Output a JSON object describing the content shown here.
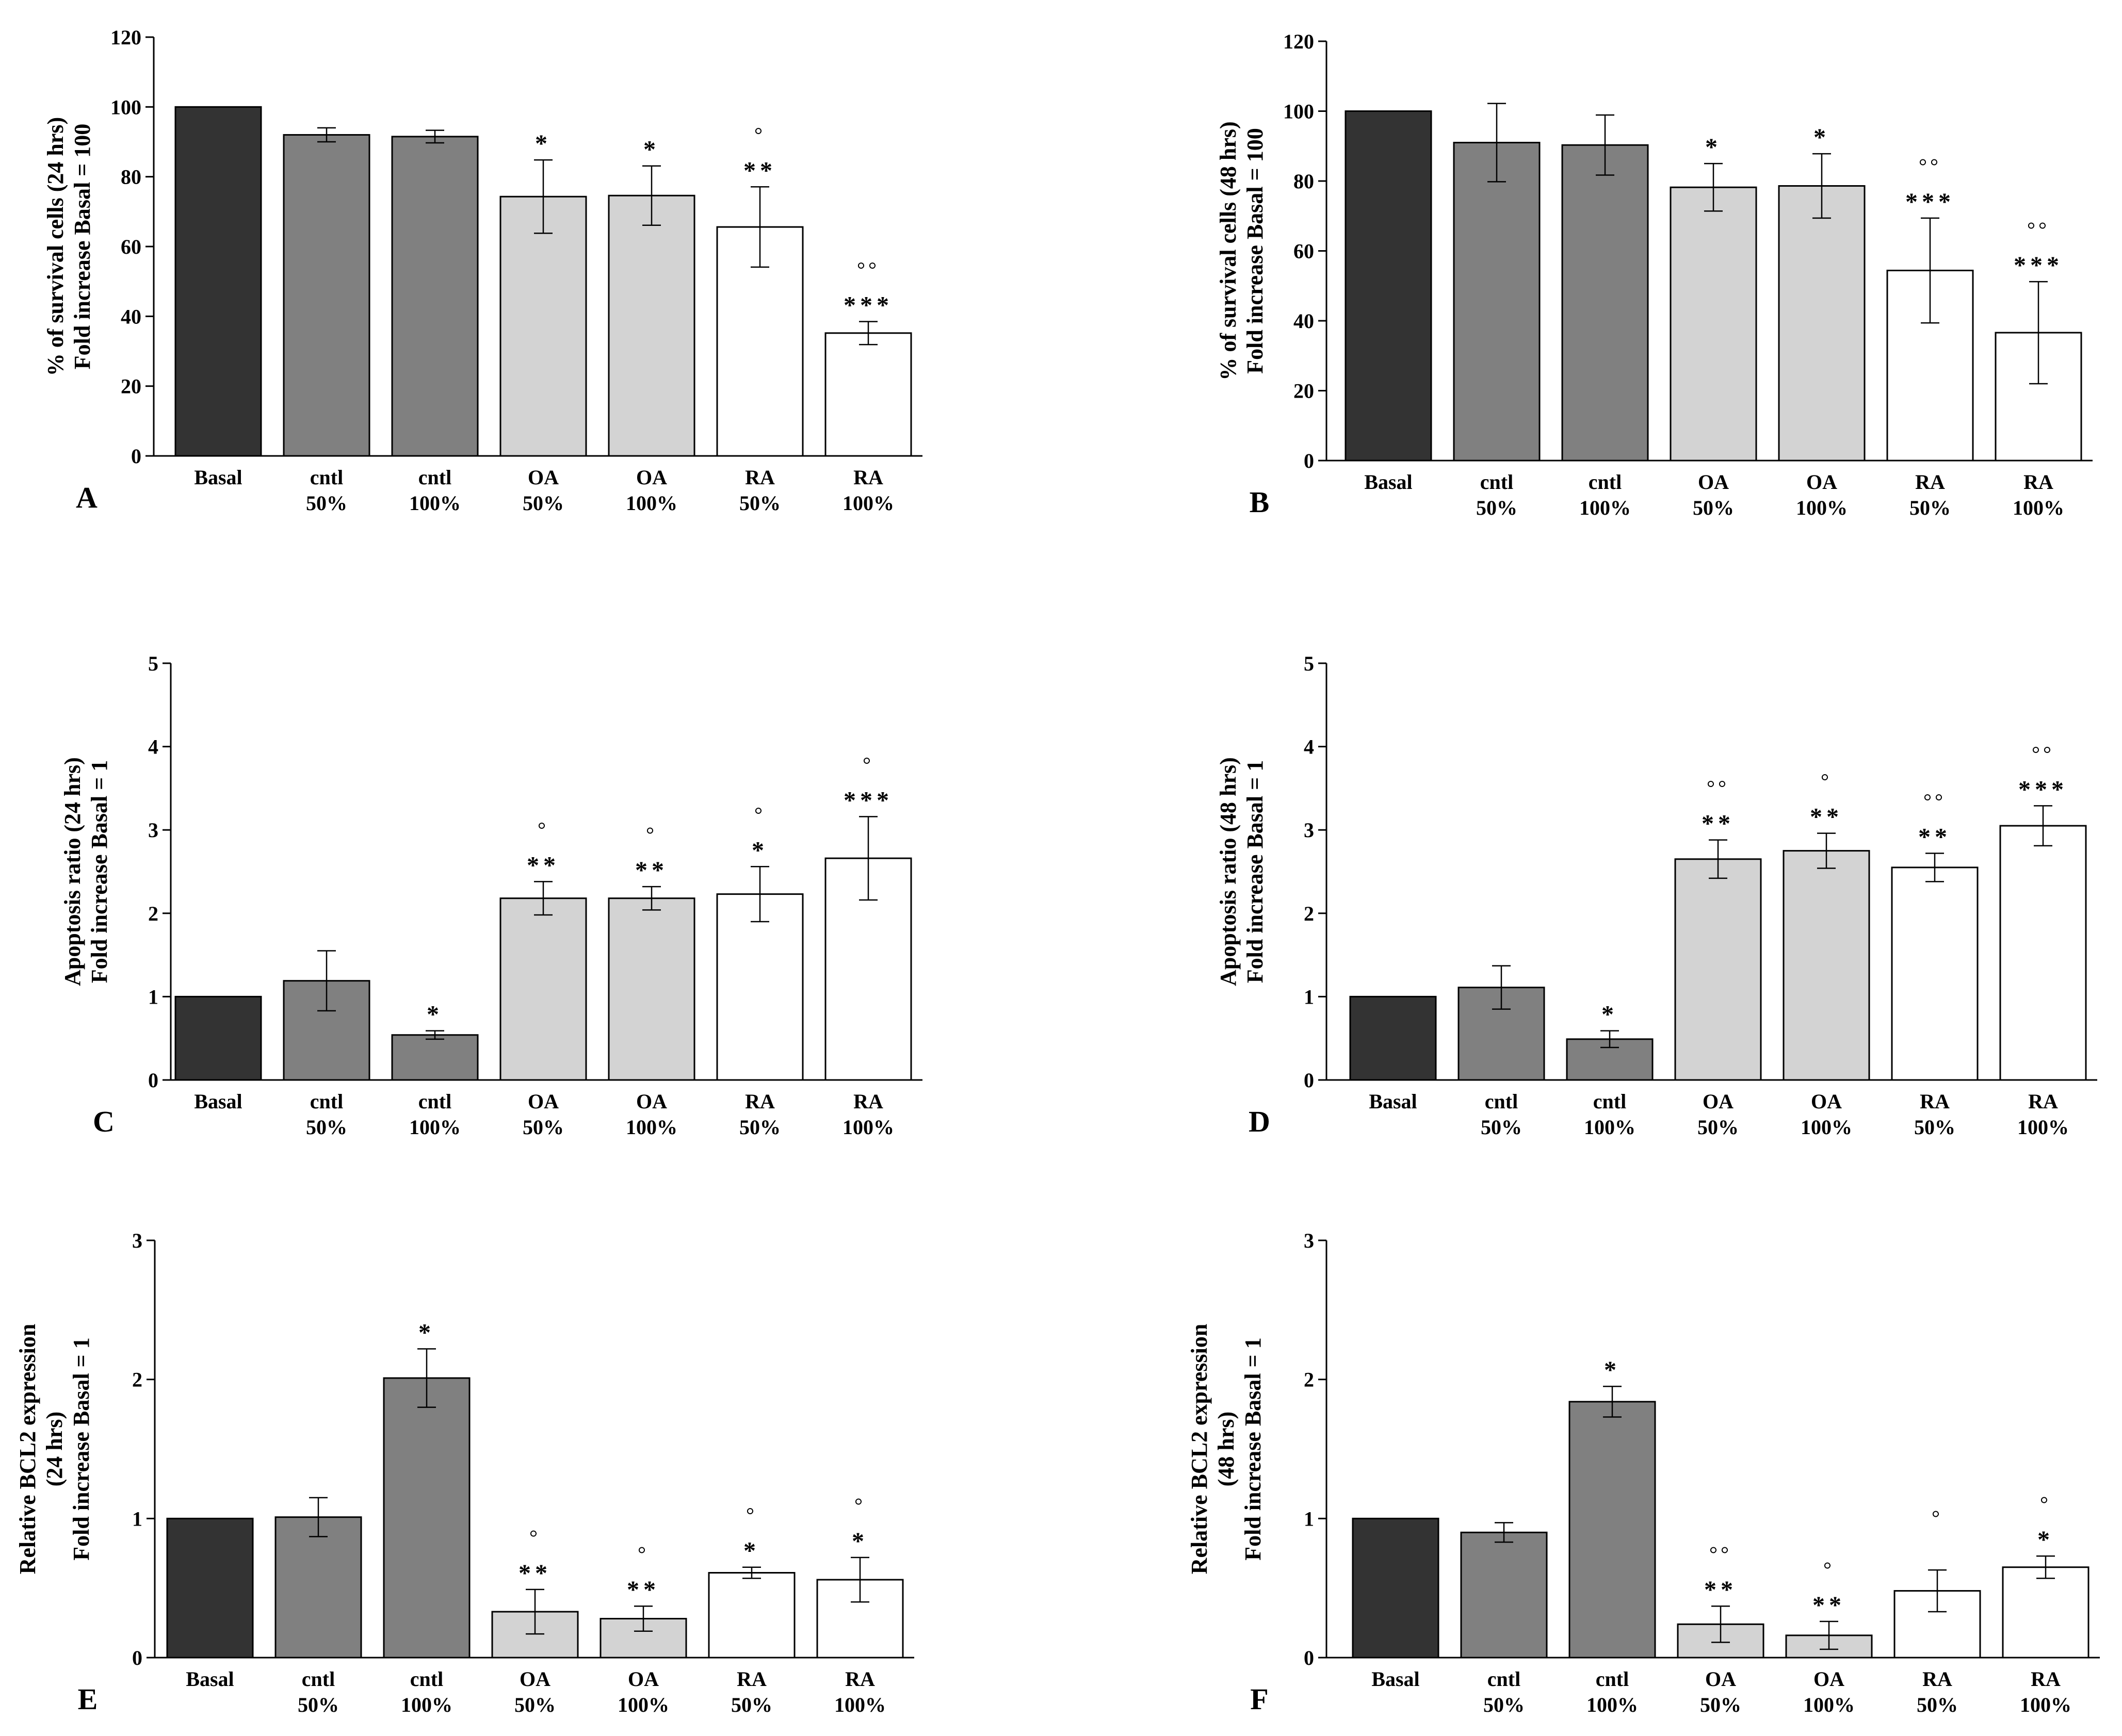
{
  "colors": {
    "basal": "#333333",
    "cntl": "#808080",
    "oa": "#d3d3d3",
    "ra": "#ffffff",
    "outline": "#000000"
  },
  "chart_data": [
    {
      "type": "bar",
      "panel_letter": "A",
      "ylabel": [
        "% of survival cells (24 hrs)",
        "Fold increase Basal = 100"
      ],
      "ylim": [
        0,
        120
      ],
      "yticks": [
        0,
        20,
        40,
        60,
        80,
        100,
        120
      ],
      "categories": [
        [
          "Basal"
        ],
        [
          "cntl",
          "50%"
        ],
        [
          "cntl",
          "100%"
        ],
        [
          "OA",
          "50%"
        ],
        [
          "OA",
          "100%"
        ],
        [
          "RA",
          "50%"
        ],
        [
          "RA",
          "100%"
        ]
      ],
      "groups": [
        "basal",
        "cntl",
        "cntl",
        "oa",
        "oa",
        "ra",
        "ra"
      ],
      "values": [
        100,
        92,
        91.5,
        74.3,
        74.6,
        65.6,
        35.2
      ],
      "errors": [
        0,
        2,
        1.8,
        10.5,
        8.5,
        11.5,
        3.3
      ],
      "stars": [
        "",
        "",
        "",
        "*",
        "*",
        "**",
        "***"
      ],
      "rings": [
        "",
        "",
        "",
        "",
        "",
        "°",
        "°°"
      ]
    },
    {
      "type": "bar",
      "panel_letter": "B",
      "ylabel": [
        "% of survival cells (48 hrs)",
        "Fold increase Basal = 100"
      ],
      "ylim": [
        0,
        120
      ],
      "yticks": [
        0,
        20,
        40,
        60,
        80,
        100,
        120
      ],
      "categories": [
        [
          "Basal"
        ],
        [
          "cntl",
          "50%"
        ],
        [
          "cntl",
          "100%"
        ],
        [
          "OA",
          "50%"
        ],
        [
          "OA",
          "100%"
        ],
        [
          "RA",
          "50%"
        ],
        [
          "RA",
          "100%"
        ]
      ],
      "groups": [
        "basal",
        "cntl",
        "cntl",
        "oa",
        "oa",
        "ra",
        "ra"
      ],
      "values": [
        100,
        91,
        90.3,
        78.2,
        78.6,
        54.4,
        36.6
      ],
      "errors": [
        0,
        11.2,
        8.6,
        6.8,
        9.2,
        15,
        14.6
      ],
      "stars": [
        "",
        "",
        "",
        "*",
        "*",
        "***",
        "***"
      ],
      "rings": [
        "",
        "",
        "",
        "",
        "",
        "°°",
        "°°"
      ]
    },
    {
      "type": "bar",
      "panel_letter": "C",
      "ylabel": [
        "Apoptosis ratio (24 hrs)",
        "Fold increase Basal = 1"
      ],
      "ylim": [
        0,
        5
      ],
      "yticks": [
        0,
        1,
        2,
        3,
        4,
        5
      ],
      "categories": [
        [
          "Basal"
        ],
        [
          "cntl",
          "50%"
        ],
        [
          "cntl",
          "100%"
        ],
        [
          "OA",
          "50%"
        ],
        [
          "OA",
          "100%"
        ],
        [
          "RA",
          "50%"
        ],
        [
          "RA",
          "100%"
        ]
      ],
      "groups": [
        "basal",
        "cntl",
        "cntl",
        "oa",
        "oa",
        "ra",
        "ra"
      ],
      "values": [
        1,
        1.19,
        0.54,
        2.18,
        2.18,
        2.23,
        2.66
      ],
      "errors": [
        0,
        0.36,
        0.05,
        0.2,
        0.14,
        0.33,
        0.5
      ],
      "stars": [
        "",
        "",
        "*",
        "**",
        "**",
        "*",
        "***"
      ],
      "rings": [
        "",
        "",
        "",
        "°",
        "°",
        "°",
        "°"
      ]
    },
    {
      "type": "bar",
      "panel_letter": "D",
      "ylabel": [
        "Apoptosis ratio (48 hrs)",
        "Fold increase Basal = 1"
      ],
      "ylim": [
        0,
        5
      ],
      "yticks": [
        0,
        1,
        2,
        3,
        4,
        5
      ],
      "categories": [
        [
          "Basal"
        ],
        [
          "cntl",
          "50%"
        ],
        [
          "cntl",
          "100%"
        ],
        [
          "OA",
          "50%"
        ],
        [
          "OA",
          "100%"
        ],
        [
          "RA",
          "50%"
        ],
        [
          "RA",
          "100%"
        ]
      ],
      "groups": [
        "basal",
        "cntl",
        "cntl",
        "oa",
        "oa",
        "ra",
        "ra"
      ],
      "values": [
        1,
        1.11,
        0.49,
        2.65,
        2.75,
        2.55,
        3.05
      ],
      "errors": [
        0,
        0.26,
        0.1,
        0.23,
        0.21,
        0.17,
        0.24
      ],
      "stars": [
        "",
        "",
        "*",
        "**",
        "**",
        "**",
        "***"
      ],
      "rings": [
        "",
        "",
        "",
        "°°",
        "°",
        "°°",
        "°°"
      ]
    },
    {
      "type": "bar",
      "panel_letter": "E",
      "ylabel": [
        "Relative BCL2 expression",
        "(24 hrs)",
        "Fold increase Basal = 1"
      ],
      "ylim": [
        0,
        3
      ],
      "yticks": [
        0,
        1,
        2,
        3
      ],
      "categories": [
        [
          "Basal"
        ],
        [
          "cntl",
          "50%"
        ],
        [
          "cntl",
          "100%"
        ],
        [
          "OA",
          "50%"
        ],
        [
          "OA",
          "100%"
        ],
        [
          "RA",
          "50%"
        ],
        [
          "RA",
          "100%"
        ]
      ],
      "groups": [
        "basal",
        "cntl",
        "cntl",
        "oa",
        "oa",
        "ra",
        "ra"
      ],
      "values": [
        1,
        1.01,
        2.01,
        0.33,
        0.28,
        0.61,
        0.56
      ],
      "errors": [
        0,
        0.14,
        0.21,
        0.16,
        0.09,
        0.04,
        0.16
      ],
      "stars": [
        "",
        "",
        "*",
        "**",
        "**",
        "*",
        "*"
      ],
      "rings": [
        "",
        "",
        "",
        "°",
        "°",
        "°",
        "°"
      ]
    },
    {
      "type": "bar",
      "panel_letter": "F",
      "ylabel": [
        "Relative BCL2 expression",
        "(48 hrs)",
        "Fold increase Basal = 1"
      ],
      "ylim": [
        0,
        3
      ],
      "yticks": [
        0,
        1,
        2,
        3
      ],
      "categories": [
        [
          "Basal"
        ],
        [
          "cntl",
          "50%"
        ],
        [
          "cntl",
          "100%"
        ],
        [
          "OA",
          "50%"
        ],
        [
          "OA",
          "100%"
        ],
        [
          "RA",
          "50%"
        ],
        [
          "RA",
          "100%"
        ]
      ],
      "groups": [
        "basal",
        "cntl",
        "cntl",
        "oa",
        "oa",
        "ra",
        "ra"
      ],
      "values": [
        1,
        0.9,
        1.84,
        0.24,
        0.16,
        0.48,
        0.65
      ],
      "errors": [
        0,
        0.07,
        0.11,
        0.13,
        0.1,
        0.15,
        0.08
      ],
      "stars": [
        "",
        "",
        "*",
        "**",
        "**",
        "",
        "*"
      ],
      "rings": [
        "",
        "",
        "",
        "°°",
        "°",
        "°",
        "°"
      ]
    }
  ]
}
